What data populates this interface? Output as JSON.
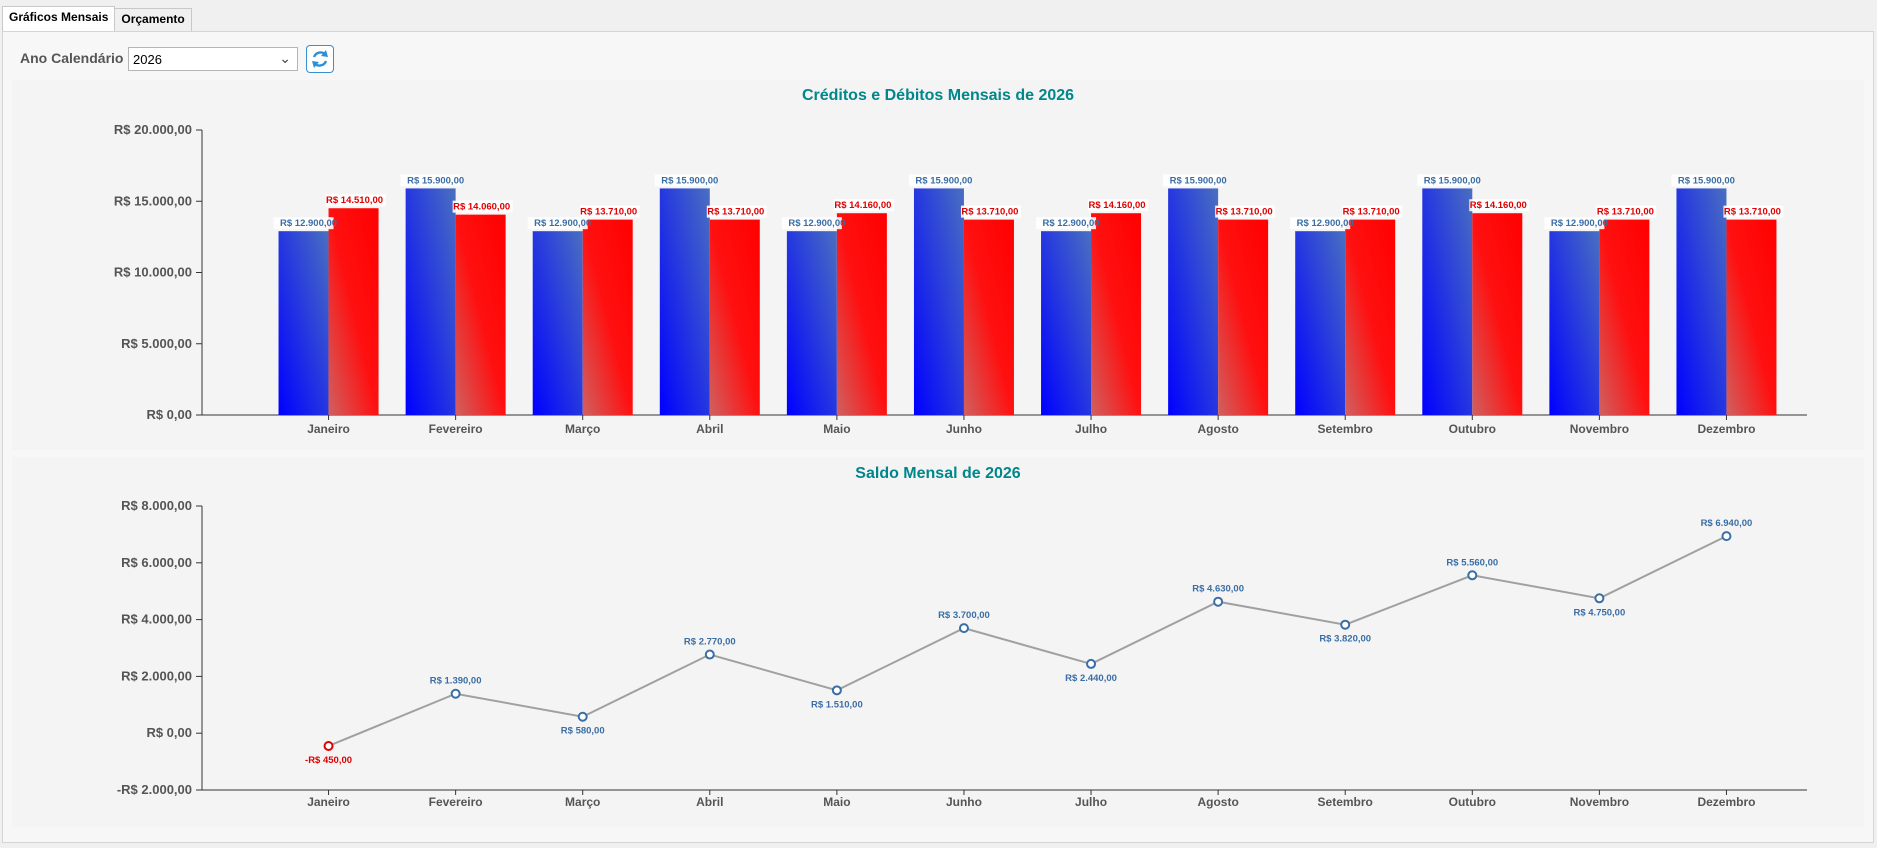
{
  "tabs": [
    {
      "label": "Gráficos Mensais",
      "active": true
    },
    {
      "label": "Orçamento",
      "active": false
    }
  ],
  "controls": {
    "year_label": "Ano Calendário",
    "year_value": "2026",
    "refresh_icon": "refresh-icon"
  },
  "colors": {
    "credit": "#0000ee",
    "debit": "#ff0000",
    "title": "#00868b",
    "line": "#a0a0a0",
    "point": "#3a6ea5",
    "negative": "#e00000"
  },
  "chart_data": [
    {
      "type": "bar",
      "title": "Créditos e Débitos Mensais de 2026",
      "categories": [
        "Janeiro",
        "Fevereiro",
        "Março",
        "Abril",
        "Maio",
        "Junho",
        "Julho",
        "Agosto",
        "Setembro",
        "Outubro",
        "Novembro",
        "Dezembro"
      ],
      "series": [
        {
          "values": [
            12900,
            15900,
            12900,
            15900,
            12900,
            15900,
            12900,
            15900,
            12900,
            15900,
            12900,
            15900
          ],
          "labels": [
            "R$ 12.900,00",
            "R$ 15.900,00",
            "R$ 12.900,00",
            "R$ 15.900,00",
            "R$ 12.900,00",
            "R$ 15.900,00",
            "R$ 12.900,00",
            "R$ 15.900,00",
            "R$ 12.900,00",
            "R$ 15.900,00",
            "R$ 12.900,00",
            "R$ 15.900,00"
          ]
        },
        {
          "values": [
            14510,
            14060,
            13710,
            13710,
            14160,
            13710,
            14160,
            13710,
            13710,
            14160,
            13710,
            13710
          ],
          "labels": [
            "R$ 14.510,00",
            "R$ 14.060,00",
            "R$ 13.710,00",
            "R$ 13.710,00",
            "R$ 14.160,00",
            "R$ 13.710,00",
            "R$ 14.160,00",
            "R$ 13.710,00",
            "R$ 13.710,00",
            "R$ 14.160,00",
            "R$ 13.710,00",
            "R$ 13.710,00"
          ]
        }
      ],
      "ylim": [
        0,
        20000
      ],
      "yticks": [
        {
          "value": 0,
          "label": "R$ 0,00"
        },
        {
          "value": 5000,
          "label": "R$ 5.000,00"
        },
        {
          "value": 10000,
          "label": "R$ 10.000,00"
        },
        {
          "value": 15000,
          "label": "R$ 15.000,00"
        },
        {
          "value": 20000,
          "label": "R$ 20.000,00"
        }
      ],
      "grid": false
    },
    {
      "type": "line",
      "title": "Saldo Mensal de 2026",
      "categories": [
        "Janeiro",
        "Fevereiro",
        "Março",
        "Abril",
        "Maio",
        "Junho",
        "Julho",
        "Agosto",
        "Setembro",
        "Outubro",
        "Novembro",
        "Dezembro"
      ],
      "values": [
        -450,
        1390,
        580,
        2770,
        1510,
        3700,
        2440,
        4630,
        3820,
        5560,
        4750,
        6940
      ],
      "labels": [
        "-R$ 450,00",
        "R$ 1.390,00",
        "R$ 580,00",
        "R$ 2.770,00",
        "R$ 1.510,00",
        "R$ 3.700,00",
        "R$ 2.440,00",
        "R$ 4.630,00",
        "R$ 3.820,00",
        "R$ 5.560,00",
        "R$ 4.750,00",
        "R$ 6.940,00"
      ],
      "ylim": [
        -2000,
        8000
      ],
      "yticks": [
        {
          "value": -2000,
          "label": "-R$ 2.000,00"
        },
        {
          "value": 0,
          "label": "R$ 0,00"
        },
        {
          "value": 2000,
          "label": "R$ 2.000,00"
        },
        {
          "value": 4000,
          "label": "R$ 4.000,00"
        },
        {
          "value": 6000,
          "label": "R$ 6.000,00"
        },
        {
          "value": 8000,
          "label": "R$ 8.000,00"
        }
      ],
      "grid": false
    }
  ]
}
